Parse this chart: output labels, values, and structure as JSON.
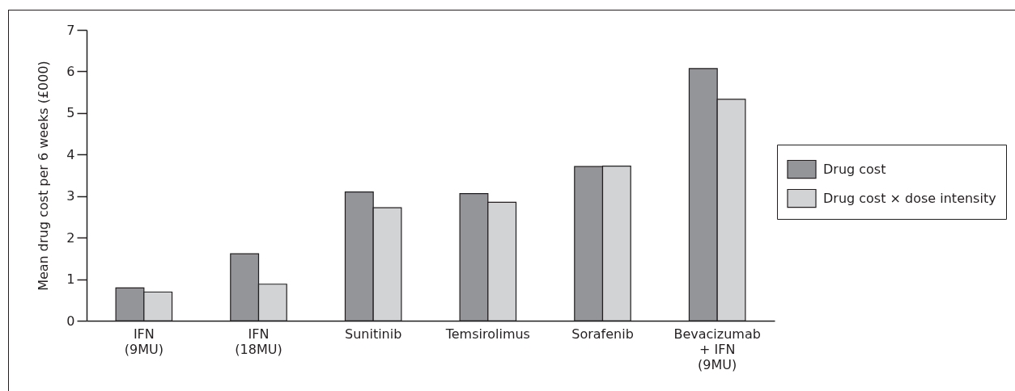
{
  "chart_data": {
    "type": "bar",
    "ylabel": "Mean drug cost per 6 weeks (£000)",
    "categories": [
      "IFN\n(9MU)",
      "IFN\n(18MU)",
      "Sunitinib",
      "Temsirolimus",
      "Sorafenib",
      "Bevacizumab\n+ IFN\n(9MU)"
    ],
    "series": [
      {
        "name": "Drug cost",
        "color": "#939598",
        "values": [
          0.79,
          1.61,
          3.1,
          3.06,
          3.71,
          6.07
        ]
      },
      {
        "name": "Drug cost × dose intensity",
        "color": "#d1d3d4",
        "values": [
          0.69,
          0.88,
          2.72,
          2.85,
          3.72,
          5.33
        ]
      }
    ],
    "ylim": [
      0,
      7
    ],
    "yticks": [
      0,
      1,
      2,
      3,
      4,
      5,
      6,
      7
    ],
    "legend": "right"
  }
}
